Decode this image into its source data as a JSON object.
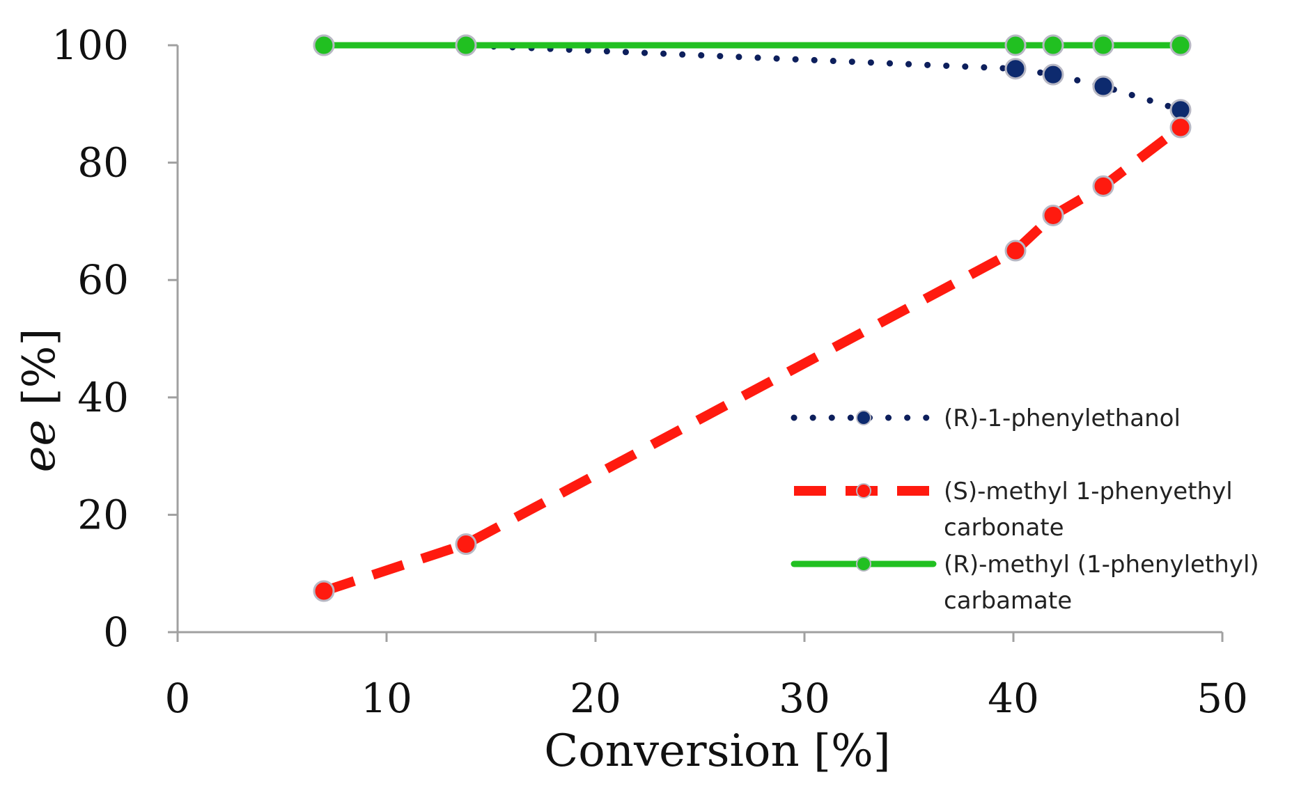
{
  "chart_data": {
    "type": "line",
    "xlabel": "Conversion [%]",
    "ylabel_italic": "ee",
    "ylabel_rest": " [%]",
    "xlim": [
      0,
      50
    ],
    "ylim": [
      0,
      100
    ],
    "xticks": [
      0,
      10,
      20,
      30,
      40,
      50
    ],
    "yticks": [
      0,
      20,
      40,
      60,
      80,
      100
    ],
    "xtick_labels": [
      "0",
      "10",
      "20",
      "30",
      "40",
      "50"
    ],
    "ytick_labels": [
      "0",
      "20",
      "40",
      "60",
      "80",
      "100"
    ],
    "grid": false,
    "legend_position": "right-center",
    "series": [
      {
        "name_lines": [
          "(R)-1-phenylethanol"
        ],
        "style": "dotted",
        "color": "#0d1f5c",
        "marker_color": "#0d2a6e",
        "x": [
          7,
          13.8,
          40.1,
          41.9,
          44.3,
          48
        ],
        "y": [
          100,
          100,
          96,
          95,
          93,
          89
        ]
      },
      {
        "name_lines": [
          "(S)-methyl 1-phenyethyl",
          "carbonate"
        ],
        "style": "dashed",
        "color": "#ff1a0f",
        "marker_color": "#ff1a0f",
        "x": [
          7,
          13.8,
          40.1,
          41.9,
          44.3,
          48
        ],
        "y": [
          7,
          15,
          65,
          71,
          76,
          86
        ]
      },
      {
        "name_lines": [
          "(R)-methyl (1-phenylethyl)",
          "carbamate"
        ],
        "style": "solid",
        "color": "#21c021",
        "marker_color": "#21c021",
        "x": [
          7,
          13.8,
          40.1,
          41.9,
          44.3,
          48
        ],
        "y": [
          100,
          100,
          100,
          100,
          100,
          100
        ]
      }
    ]
  }
}
